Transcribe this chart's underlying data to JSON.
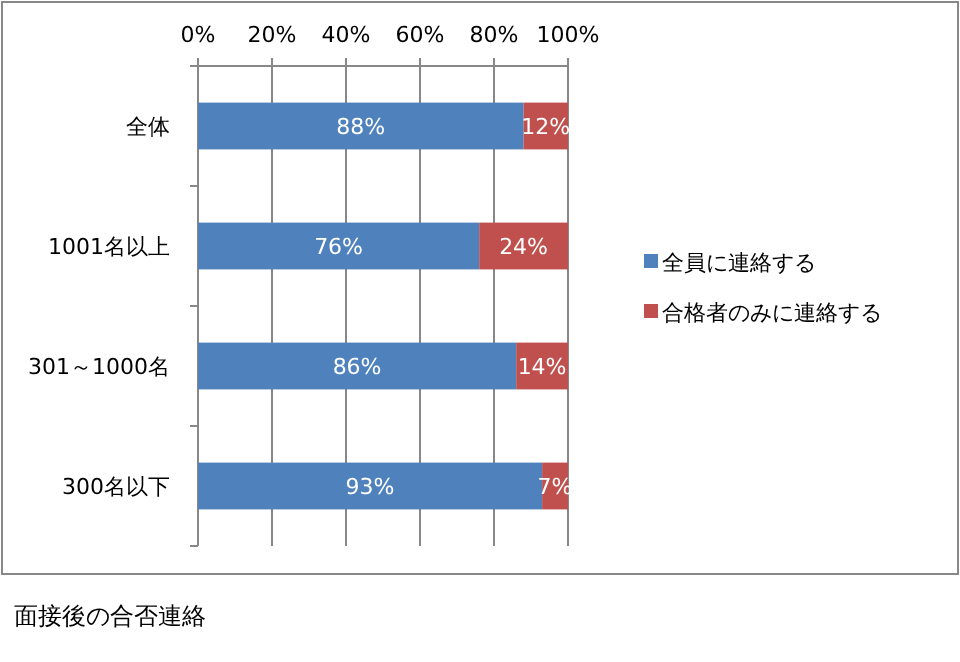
{
  "chart_data": {
    "type": "bar",
    "orientation": "horizontal",
    "stacked": true,
    "categories": [
      "全体",
      "1001名以上",
      "301～1000名",
      "300名以下"
    ],
    "series": [
      {
        "name": "全員に連絡する",
        "color": "#4f81bd",
        "values": [
          88,
          76,
          86,
          93
        ],
        "value_labels": [
          "88%",
          "76%",
          "86%",
          "93%"
        ]
      },
      {
        "name": "合格者のみに連絡する",
        "color": "#c0504d",
        "values": [
          12,
          24,
          14,
          7
        ],
        "value_labels": [
          "12%",
          "24%",
          "14%",
          "7%"
        ]
      }
    ],
    "xlim": [
      0,
      100
    ],
    "xticks": [
      {
        "value": 0,
        "label": "0%"
      },
      {
        "value": 20,
        "label": "20%"
      },
      {
        "value": 40,
        "label": "40%"
      },
      {
        "value": 60,
        "label": "60%"
      },
      {
        "value": 80,
        "label": "80%"
      },
      {
        "value": 100,
        "label": "100%"
      }
    ],
    "grid": "x",
    "legend": "right",
    "annotations": [
      "面接後の合否連絡"
    ]
  }
}
